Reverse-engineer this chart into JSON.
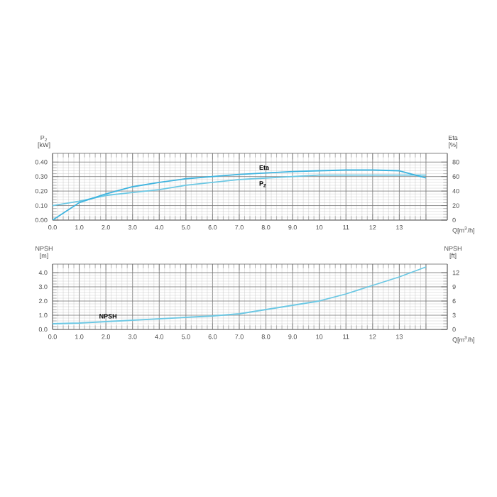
{
  "chart_data": [
    {
      "type": "line",
      "xlabel": "Q[m$^{3}$/h]",
      "ylabel": "P$_{2}$ [kW]",
      "y2label": "Eta [%]",
      "x": [
        0,
        1,
        2,
        3,
        4,
        5,
        6,
        7,
        8,
        9,
        10,
        11,
        12,
        13,
        14
      ],
      "series": [
        {
          "name": "P$_{2}$",
          "color": "#6cc8e4",
          "values": [
            0.1,
            0.13,
            0.17,
            0.19,
            0.21,
            0.24,
            0.26,
            0.28,
            0.29,
            0.3,
            0.31,
            0.31,
            0.31,
            0.31,
            0.31
          ]
        },
        {
          "name": "Eta",
          "color": "#3fb4df",
          "axis": "y2",
          "values": [
            0,
            24,
            36,
            46,
            52,
            57,
            60,
            63,
            65,
            67,
            68,
            69,
            69,
            68,
            58
          ]
        }
      ],
      "xlim": [
        0,
        14.8
      ],
      "xticks": [
        {
          "value": 0,
          "label": "0.0"
        },
        {
          "value": 1,
          "label": "1.0"
        },
        {
          "value": 2,
          "label": "2.0"
        },
        {
          "value": 3,
          "label": "3.0"
        },
        {
          "value": 4,
          "label": "4.0"
        },
        {
          "value": 5,
          "label": "5.0"
        },
        {
          "value": 6,
          "label": "6.0"
        },
        {
          "value": 7,
          "label": "7.0"
        },
        {
          "value": 8,
          "label": "8.0"
        },
        {
          "value": 9,
          "label": "9.0"
        },
        10,
        11,
        12,
        13,
        {
          "value": 14,
          "label": null
        }
      ],
      "ylim": [
        0,
        0.46
      ],
      "yticks": [
        {
          "value": 0,
          "label": "0.00"
        },
        {
          "value": 0.1,
          "label": "0.10"
        },
        {
          "value": 0.2,
          "label": "0.20"
        },
        {
          "value": 0.3,
          "label": "0.30"
        },
        {
          "value": 0.4,
          "label": "0.40"
        }
      ],
      "y2lim": [
        0,
        92
      ],
      "y2ticks": [
        0,
        20,
        40,
        60,
        80
      ],
      "grid": true,
      "legend": false,
      "marker": "none",
      "line_style": "solid"
    },
    {
      "type": "line",
      "xlabel": "Q[m$^{3}$/h]",
      "ylabel": "NPSH [m]",
      "y2label": "NPSH [ft]",
      "x": [
        0,
        1,
        2,
        3,
        4,
        5,
        6,
        7,
        8,
        9,
        10,
        11,
        12,
        13,
        14
      ],
      "series": [
        {
          "name": "NPSH",
          "color": "#6cc8e4",
          "values": [
            0.4,
            0.45,
            0.55,
            0.65,
            0.75,
            0.85,
            0.95,
            1.1,
            1.4,
            1.7,
            2.0,
            2.5,
            3.1,
            3.7,
            4.4
          ]
        }
      ],
      "xlim": [
        0,
        14.8
      ],
      "xticks": [
        {
          "value": 0,
          "label": "0.0"
        },
        {
          "value": 1,
          "label": "1.0"
        },
        {
          "value": 2,
          "label": "2.0"
        },
        {
          "value": 3,
          "label": "3.0"
        },
        {
          "value": 4,
          "label": "4.0"
        },
        {
          "value": 5,
          "label": "5.0"
        },
        {
          "value": 6,
          "label": "6.0"
        },
        {
          "value": 7,
          "label": "7.0"
        },
        {
          "value": 8,
          "label": "8.0"
        },
        {
          "value": 9,
          "label": "9.0"
        },
        10,
        11,
        12,
        13,
        {
          "value": 14,
          "label": null
        }
      ],
      "ylim": [
        0,
        4.6
      ],
      "yticks": [
        {
          "value": 0,
          "label": "0.0"
        },
        {
          "value": 1,
          "label": "1.0"
        },
        {
          "value": 2,
          "label": "2.0"
        },
        {
          "value": 3,
          "label": "3.0"
        },
        {
          "value": 4,
          "label": "4.0"
        }
      ],
      "y2lim": [
        0,
        13.8
      ],
      "y2ticks": [
        0,
        3,
        6,
        9,
        12
      ],
      "grid": true,
      "legend": false,
      "marker": "none",
      "line_style": "solid"
    }
  ]
}
